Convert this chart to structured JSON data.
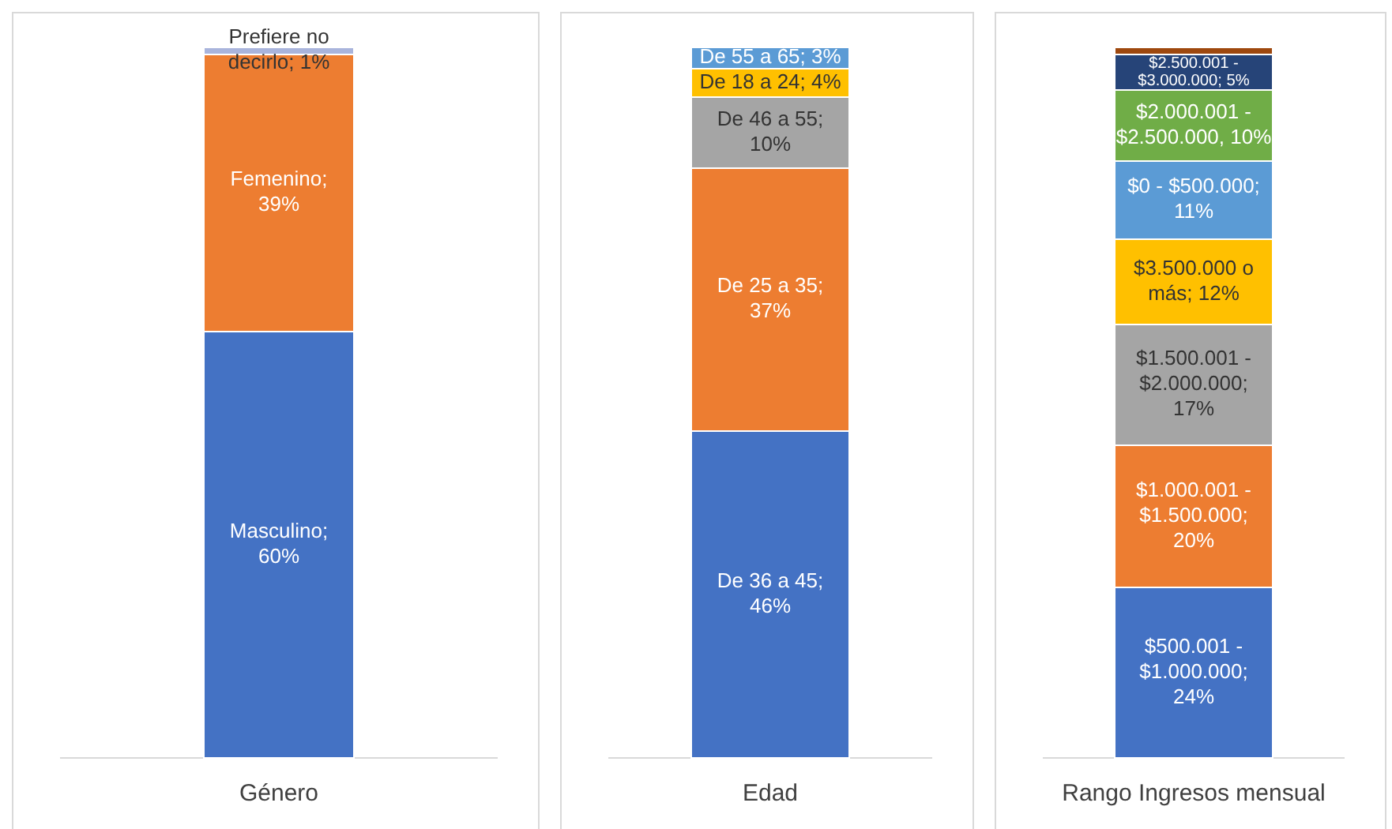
{
  "chart_data": [
    {
      "type": "bar",
      "stacked": true,
      "categories": [
        "Género"
      ],
      "ylim": [
        0,
        100
      ],
      "series": [
        {
          "color": "#4472c4",
          "values": [
            60
          ],
          "value_labels": [
            "Masculino; 60%"
          ]
        },
        {
          "color": "#ed7d31",
          "values": [
            39
          ],
          "value_labels": [
            "Femenino; 39%"
          ]
        },
        {
          "color": "#a9b4dc",
          "values": [
            1
          ],
          "value_labels": [
            "Prefiere no decirlo; 1%"
          ]
        }
      ]
    },
    {
      "type": "bar",
      "stacked": true,
      "categories": [
        "Edad"
      ],
      "ylim": [
        0,
        100
      ],
      "series": [
        {
          "color": "#4472c4",
          "values": [
            46
          ],
          "value_labels": [
            "De 36 a 45; 46%"
          ]
        },
        {
          "color": "#ed7d31",
          "values": [
            37
          ],
          "value_labels": [
            "De 25 a 35; 37%"
          ]
        },
        {
          "color": "#a5a5a5",
          "values": [
            10
          ],
          "value_labels": [
            "De 46 a 55; 10%"
          ]
        },
        {
          "color": "#ffc000",
          "values": [
            4
          ],
          "value_labels": [
            "De 18 a 24; 4%"
          ]
        },
        {
          "color": "#5b9bd5",
          "values": [
            3
          ],
          "value_labels": [
            "De 55 a 65; 3%"
          ]
        }
      ]
    },
    {
      "type": "bar",
      "stacked": true,
      "categories": [
        "Rango Ingresos mensual"
      ],
      "ylim": [
        0,
        100
      ],
      "series": [
        {
          "color": "#4472c4",
          "values": [
            24
          ],
          "value_labels": [
            "$500.001 - $1.000.000; 24%"
          ]
        },
        {
          "color": "#ed7d31",
          "values": [
            20
          ],
          "value_labels": [
            "$1.000.001 - $1.500.000; 20%"
          ]
        },
        {
          "color": "#a5a5a5",
          "values": [
            17
          ],
          "value_labels": [
            "$1.500.001 - $2.000.000; 17%"
          ]
        },
        {
          "color": "#ffc000",
          "values": [
            12
          ],
          "value_labels": [
            "$3.500.000 o más; 12%"
          ]
        },
        {
          "color": "#5b9bd5",
          "values": [
            11
          ],
          "value_labels": [
            "$0  - $500.000; 11%"
          ]
        },
        {
          "color": "#70ad47",
          "values": [
            10
          ],
          "value_labels": [
            "$2.000.001 - $2.500.000, 10%"
          ]
        },
        {
          "color": "#264478",
          "values": [
            5
          ],
          "value_labels": [
            "$2.500.001 - $3.000.000; 5%"
          ]
        },
        {
          "color": "#9e480e",
          "values": [
            1
          ],
          "value_labels": [
            null
          ]
        }
      ]
    }
  ]
}
